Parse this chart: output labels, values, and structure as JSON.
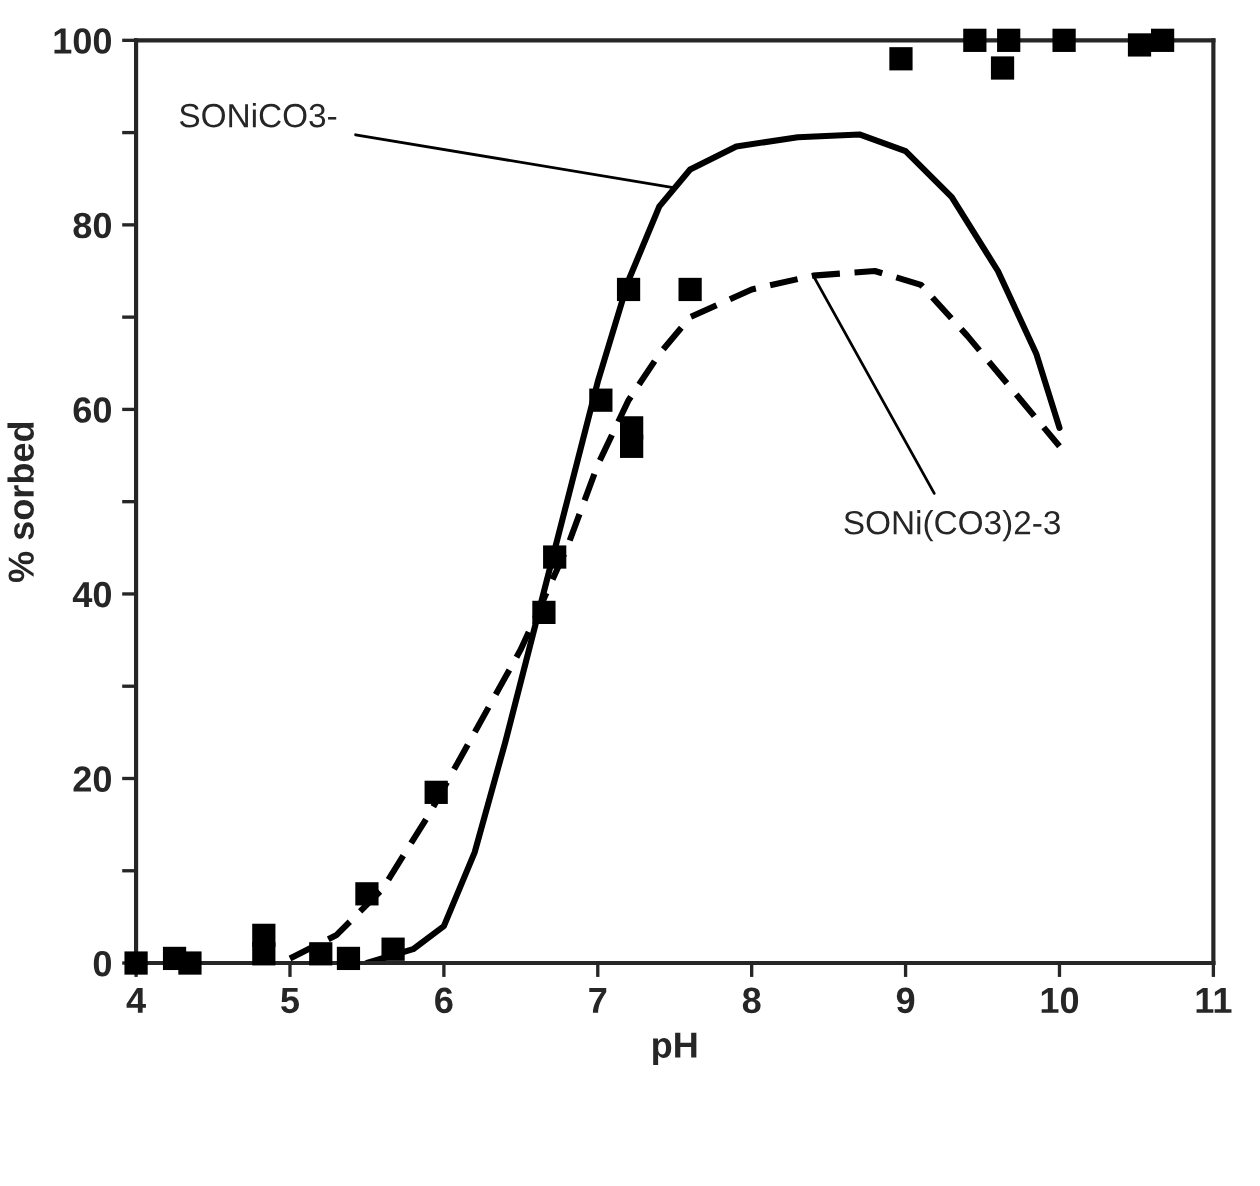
{
  "chart_data": {
    "type": "scatter",
    "xlabel": "pH",
    "ylabel": "% sorbed",
    "xlim": [
      4,
      11
    ],
    "ylim": [
      0,
      100
    ],
    "xticks": [
      4,
      5,
      6,
      7,
      8,
      9,
      10,
      11
    ],
    "yticks": [
      0,
      {
        "value": 10,
        "label": null
      },
      20,
      {
        "value": 30,
        "label": null
      },
      40,
      {
        "value": 50,
        "label": null
      },
      60,
      {
        "value": 70,
        "label": null
      },
      80,
      {
        "value": 90,
        "label": null
      },
      100
    ],
    "grid": false,
    "legend": false,
    "series": [
      {
        "marker": "square",
        "color": "#000000",
        "x": [
          4.0,
          4.25,
          4.35,
          4.83,
          4.83,
          5.2,
          5.38,
          5.5,
          5.67,
          5.95,
          6.65,
          6.72,
          7.02,
          7.2,
          7.22,
          7.22,
          7.6,
          8.97,
          9.45,
          9.63,
          9.67,
          10.03,
          10.52,
          10.67
        ],
        "values": [
          0,
          0.5,
          0,
          1,
          3,
          1,
          0.5,
          7.5,
          1.5,
          18.5,
          38,
          44,
          61,
          73,
          56,
          58,
          73,
          98,
          100,
          97,
          100,
          100,
          99.5,
          100
        ]
      },
      {
        "type": "line",
        "line_style": "solid",
        "color": "#000000",
        "x": [
          5.5,
          5.8,
          6.0,
          6.2,
          6.4,
          6.6,
          6.8,
          7.0,
          7.2,
          7.4,
          7.6,
          7.9,
          8.3,
          8.7,
          9.0,
          9.3,
          9.6,
          9.85,
          10.0
        ],
        "values": [
          0,
          1.5,
          4,
          12,
          24,
          37,
          50,
          63,
          74,
          82,
          86,
          88.5,
          89.5,
          89.8,
          88,
          83,
          75,
          66,
          58
        ]
      },
      {
        "type": "line",
        "line_style": "dashed",
        "color": "#000000",
        "x": [
          5.0,
          5.3,
          5.6,
          5.9,
          6.2,
          6.5,
          6.8,
          7.0,
          7.2,
          7.4,
          7.6,
          8.0,
          8.4,
          8.8,
          9.1,
          9.4,
          9.7,
          10.0
        ],
        "values": [
          0.5,
          3,
          8,
          16,
          25,
          34,
          45,
          54,
          61,
          66,
          70,
          73,
          74.5,
          75,
          73.5,
          68,
          62,
          56
        ]
      }
    ],
    "annotations": [
      {
        "text": "SONiCO3-",
        "x": 7.5,
        "y": 84
      },
      {
        "text": "SONi(CO3)2-3",
        "x": 8.4,
        "y": 74.5
      }
    ]
  }
}
